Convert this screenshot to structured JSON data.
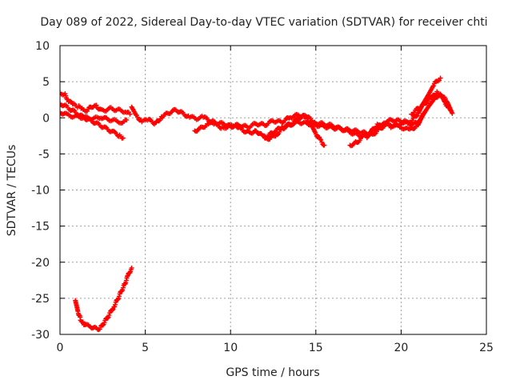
{
  "chart_data": {
    "type": "scatter",
    "title": "Day 089 of 2022, Sidereal Day-to-day VTEC variation (SDTVAR) for receiver chti",
    "xlabel": "GPS time / hours",
    "ylabel": "SDTVAR / TECUs",
    "xlim": [
      0,
      25
    ],
    "ylim": [
      -30,
      10
    ],
    "xticks": [
      0,
      5,
      10,
      15,
      20,
      25
    ],
    "yticks": [
      -30,
      -25,
      -20,
      -15,
      -10,
      -5,
      0,
      5,
      10
    ],
    "grid": true,
    "marker": "+",
    "series": [
      {
        "name": "track-1",
        "color": "#ff0000",
        "points": [
          [
            0.0,
            3.5
          ],
          [
            0.3,
            3.2
          ],
          [
            0.5,
            2.3
          ],
          [
            0.8,
            1.8
          ],
          [
            1.1,
            1.5
          ],
          [
            1.3,
            1.2
          ],
          [
            1.6,
            1.0
          ],
          [
            1.8,
            1.5
          ],
          [
            2.0,
            1.7
          ],
          [
            2.2,
            1.5
          ],
          [
            2.4,
            1.0
          ],
          [
            2.7,
            1.1
          ],
          [
            3.0,
            1.3
          ],
          [
            3.3,
            1.1
          ],
          [
            3.6,
            1.0
          ],
          [
            3.9,
            0.8
          ],
          [
            4.1,
            0.5
          ]
        ]
      },
      {
        "name": "track-2",
        "color": "#ff0000",
        "points": [
          [
            0.0,
            2.0
          ],
          [
            0.4,
            1.5
          ],
          [
            0.8,
            0.9
          ],
          [
            1.2,
            0.3
          ],
          [
            1.6,
            -0.2
          ],
          [
            2.0,
            -0.6
          ],
          [
            2.4,
            -1.1
          ],
          [
            2.8,
            -1.6
          ],
          [
            3.2,
            -2.1
          ],
          [
            3.5,
            -2.5
          ],
          [
            3.7,
            -2.8
          ]
        ]
      },
      {
        "name": "track-3",
        "color": "#ff0000",
        "points": [
          [
            0.0,
            0.8
          ],
          [
            0.4,
            0.4
          ],
          [
            0.8,
            0.2
          ],
          [
            1.2,
            0.1
          ],
          [
            1.6,
            0.0
          ],
          [
            2.0,
            -0.1
          ],
          [
            2.4,
            0.1
          ],
          [
            2.8,
            -0.2
          ],
          [
            3.2,
            -0.4
          ],
          [
            3.6,
            -0.6
          ],
          [
            3.9,
            -0.3
          ]
        ]
      },
      {
        "name": "track-4",
        "color": "#ff0000",
        "points": [
          [
            4.2,
            1.5
          ],
          [
            4.5,
            0.2
          ],
          [
            4.8,
            -0.5
          ],
          [
            5.2,
            -0.3
          ],
          [
            5.6,
            -0.8
          ],
          [
            6.0,
            0.2
          ],
          [
            6.4,
            0.7
          ],
          [
            6.8,
            1.1
          ],
          [
            7.2,
            0.6
          ],
          [
            7.6,
            0.1
          ],
          [
            8.0,
            -0.1
          ],
          [
            8.4,
            0.1
          ],
          [
            8.8,
            -0.4
          ],
          [
            9.2,
            -0.8
          ],
          [
            9.6,
            -0.8
          ],
          [
            10.0,
            -1.2
          ],
          [
            10.5,
            -1.0
          ],
          [
            11.0,
            -1.3
          ],
          [
            11.5,
            -0.8
          ],
          [
            12.0,
            -1.0
          ],
          [
            12.5,
            -0.4
          ],
          [
            13.0,
            -0.6
          ],
          [
            13.5,
            0.1
          ],
          [
            14.0,
            0.4
          ],
          [
            14.5,
            0.1
          ],
          [
            15.0,
            -0.7
          ],
          [
            15.5,
            -0.9
          ],
          [
            16.0,
            -1.1
          ],
          [
            16.5,
            -1.6
          ],
          [
            17.0,
            -1.7
          ],
          [
            17.5,
            -1.9
          ],
          [
            18.0,
            -2.2
          ],
          [
            18.5,
            -1.6
          ],
          [
            19.0,
            -0.6
          ],
          [
            19.5,
            -0.3
          ],
          [
            20.0,
            -0.5
          ],
          [
            20.5,
            -0.9
          ],
          [
            21.0,
            -0.7
          ],
          [
            21.5,
            1.2
          ],
          [
            22.0,
            2.8
          ],
          [
            22.3,
            3.3
          ],
          [
            22.6,
            2.0
          ],
          [
            22.9,
            1.0
          ]
        ]
      },
      {
        "name": "track-5",
        "color": "#ff0000",
        "points": [
          [
            7.9,
            -1.8
          ],
          [
            8.3,
            -1.4
          ],
          [
            8.7,
            -0.8
          ],
          [
            9.1,
            -0.9
          ],
          [
            9.5,
            -1.4
          ],
          [
            9.9,
            -1.2
          ],
          [
            10.3,
            -1.0
          ],
          [
            10.7,
            -1.7
          ],
          [
            11.1,
            -2.1
          ],
          [
            11.5,
            -1.8
          ],
          [
            11.9,
            -2.6
          ],
          [
            12.3,
            -2.9
          ],
          [
            12.7,
            -2.3
          ],
          [
            13.1,
            -1.4
          ],
          [
            13.5,
            -1.0
          ],
          [
            13.9,
            -0.2
          ],
          [
            14.3,
            0.3
          ],
          [
            14.7,
            -0.8
          ],
          [
            15.0,
            -2.2
          ],
          [
            15.3,
            -3.2
          ],
          [
            15.5,
            -3.8
          ]
        ]
      },
      {
        "name": "track-6",
        "color": "#ff0000",
        "points": [
          [
            12.0,
            -2.8
          ],
          [
            12.5,
            -2.0
          ],
          [
            13.0,
            -1.3
          ],
          [
            13.5,
            -0.9
          ],
          [
            14.0,
            -0.6
          ],
          [
            14.5,
            -0.8
          ],
          [
            15.0,
            -1.0
          ],
          [
            15.5,
            -1.2
          ],
          [
            16.0,
            -1.4
          ],
          [
            16.5,
            -1.5
          ],
          [
            17.0,
            -2.0
          ],
          [
            17.5,
            -2.4
          ],
          [
            18.0,
            -2.6
          ],
          [
            18.4,
            -2.2
          ],
          [
            18.8,
            -1.4
          ],
          [
            19.2,
            -0.9
          ],
          [
            19.6,
            -1.1
          ],
          [
            20.0,
            -1.3
          ],
          [
            20.5,
            -1.7
          ],
          [
            21.0,
            -1.0
          ],
          [
            21.3,
            0.6
          ]
        ]
      },
      {
        "name": "track-7",
        "color": "#ff0000",
        "points": [
          [
            17.0,
            -3.8
          ],
          [
            17.4,
            -3.4
          ],
          [
            17.8,
            -2.6
          ],
          [
            18.2,
            -2.0
          ],
          [
            18.6,
            -1.0
          ],
          [
            19.0,
            -0.8
          ],
          [
            19.4,
            -1.2
          ],
          [
            19.8,
            -1.0
          ],
          [
            20.2,
            -0.6
          ],
          [
            20.6,
            -0.4
          ],
          [
            21.0,
            0.6
          ],
          [
            21.3,
            2.0
          ],
          [
            21.6,
            3.2
          ],
          [
            21.9,
            4.5
          ],
          [
            22.1,
            5.1
          ],
          [
            22.3,
            5.5
          ]
        ]
      },
      {
        "name": "track-8",
        "color": "#ff0000",
        "points": [
          [
            20.6,
            0.5
          ],
          [
            21.0,
            1.3
          ],
          [
            21.4,
            2.0
          ],
          [
            21.8,
            2.8
          ],
          [
            22.1,
            3.5
          ],
          [
            22.4,
            3.1
          ],
          [
            22.7,
            2.2
          ],
          [
            23.0,
            0.6
          ]
        ]
      },
      {
        "name": "track-9",
        "color": "#ff0000",
        "points": [
          [
            0.9,
            -25.3
          ],
          [
            1.05,
            -26.8
          ],
          [
            1.2,
            -27.9
          ],
          [
            1.4,
            -28.5
          ],
          [
            1.6,
            -28.8
          ],
          [
            1.8,
            -28.9
          ],
          [
            2.0,
            -29.1
          ],
          [
            2.2,
            -29.3
          ],
          [
            2.4,
            -29.0
          ],
          [
            2.6,
            -28.3
          ],
          [
            2.8,
            -27.6
          ],
          [
            3.0,
            -26.8
          ],
          [
            3.2,
            -26.0
          ],
          [
            3.4,
            -25.0
          ],
          [
            3.6,
            -24.0
          ],
          [
            3.8,
            -23.0
          ],
          [
            4.0,
            -21.8
          ],
          [
            4.2,
            -20.8
          ]
        ]
      }
    ]
  }
}
